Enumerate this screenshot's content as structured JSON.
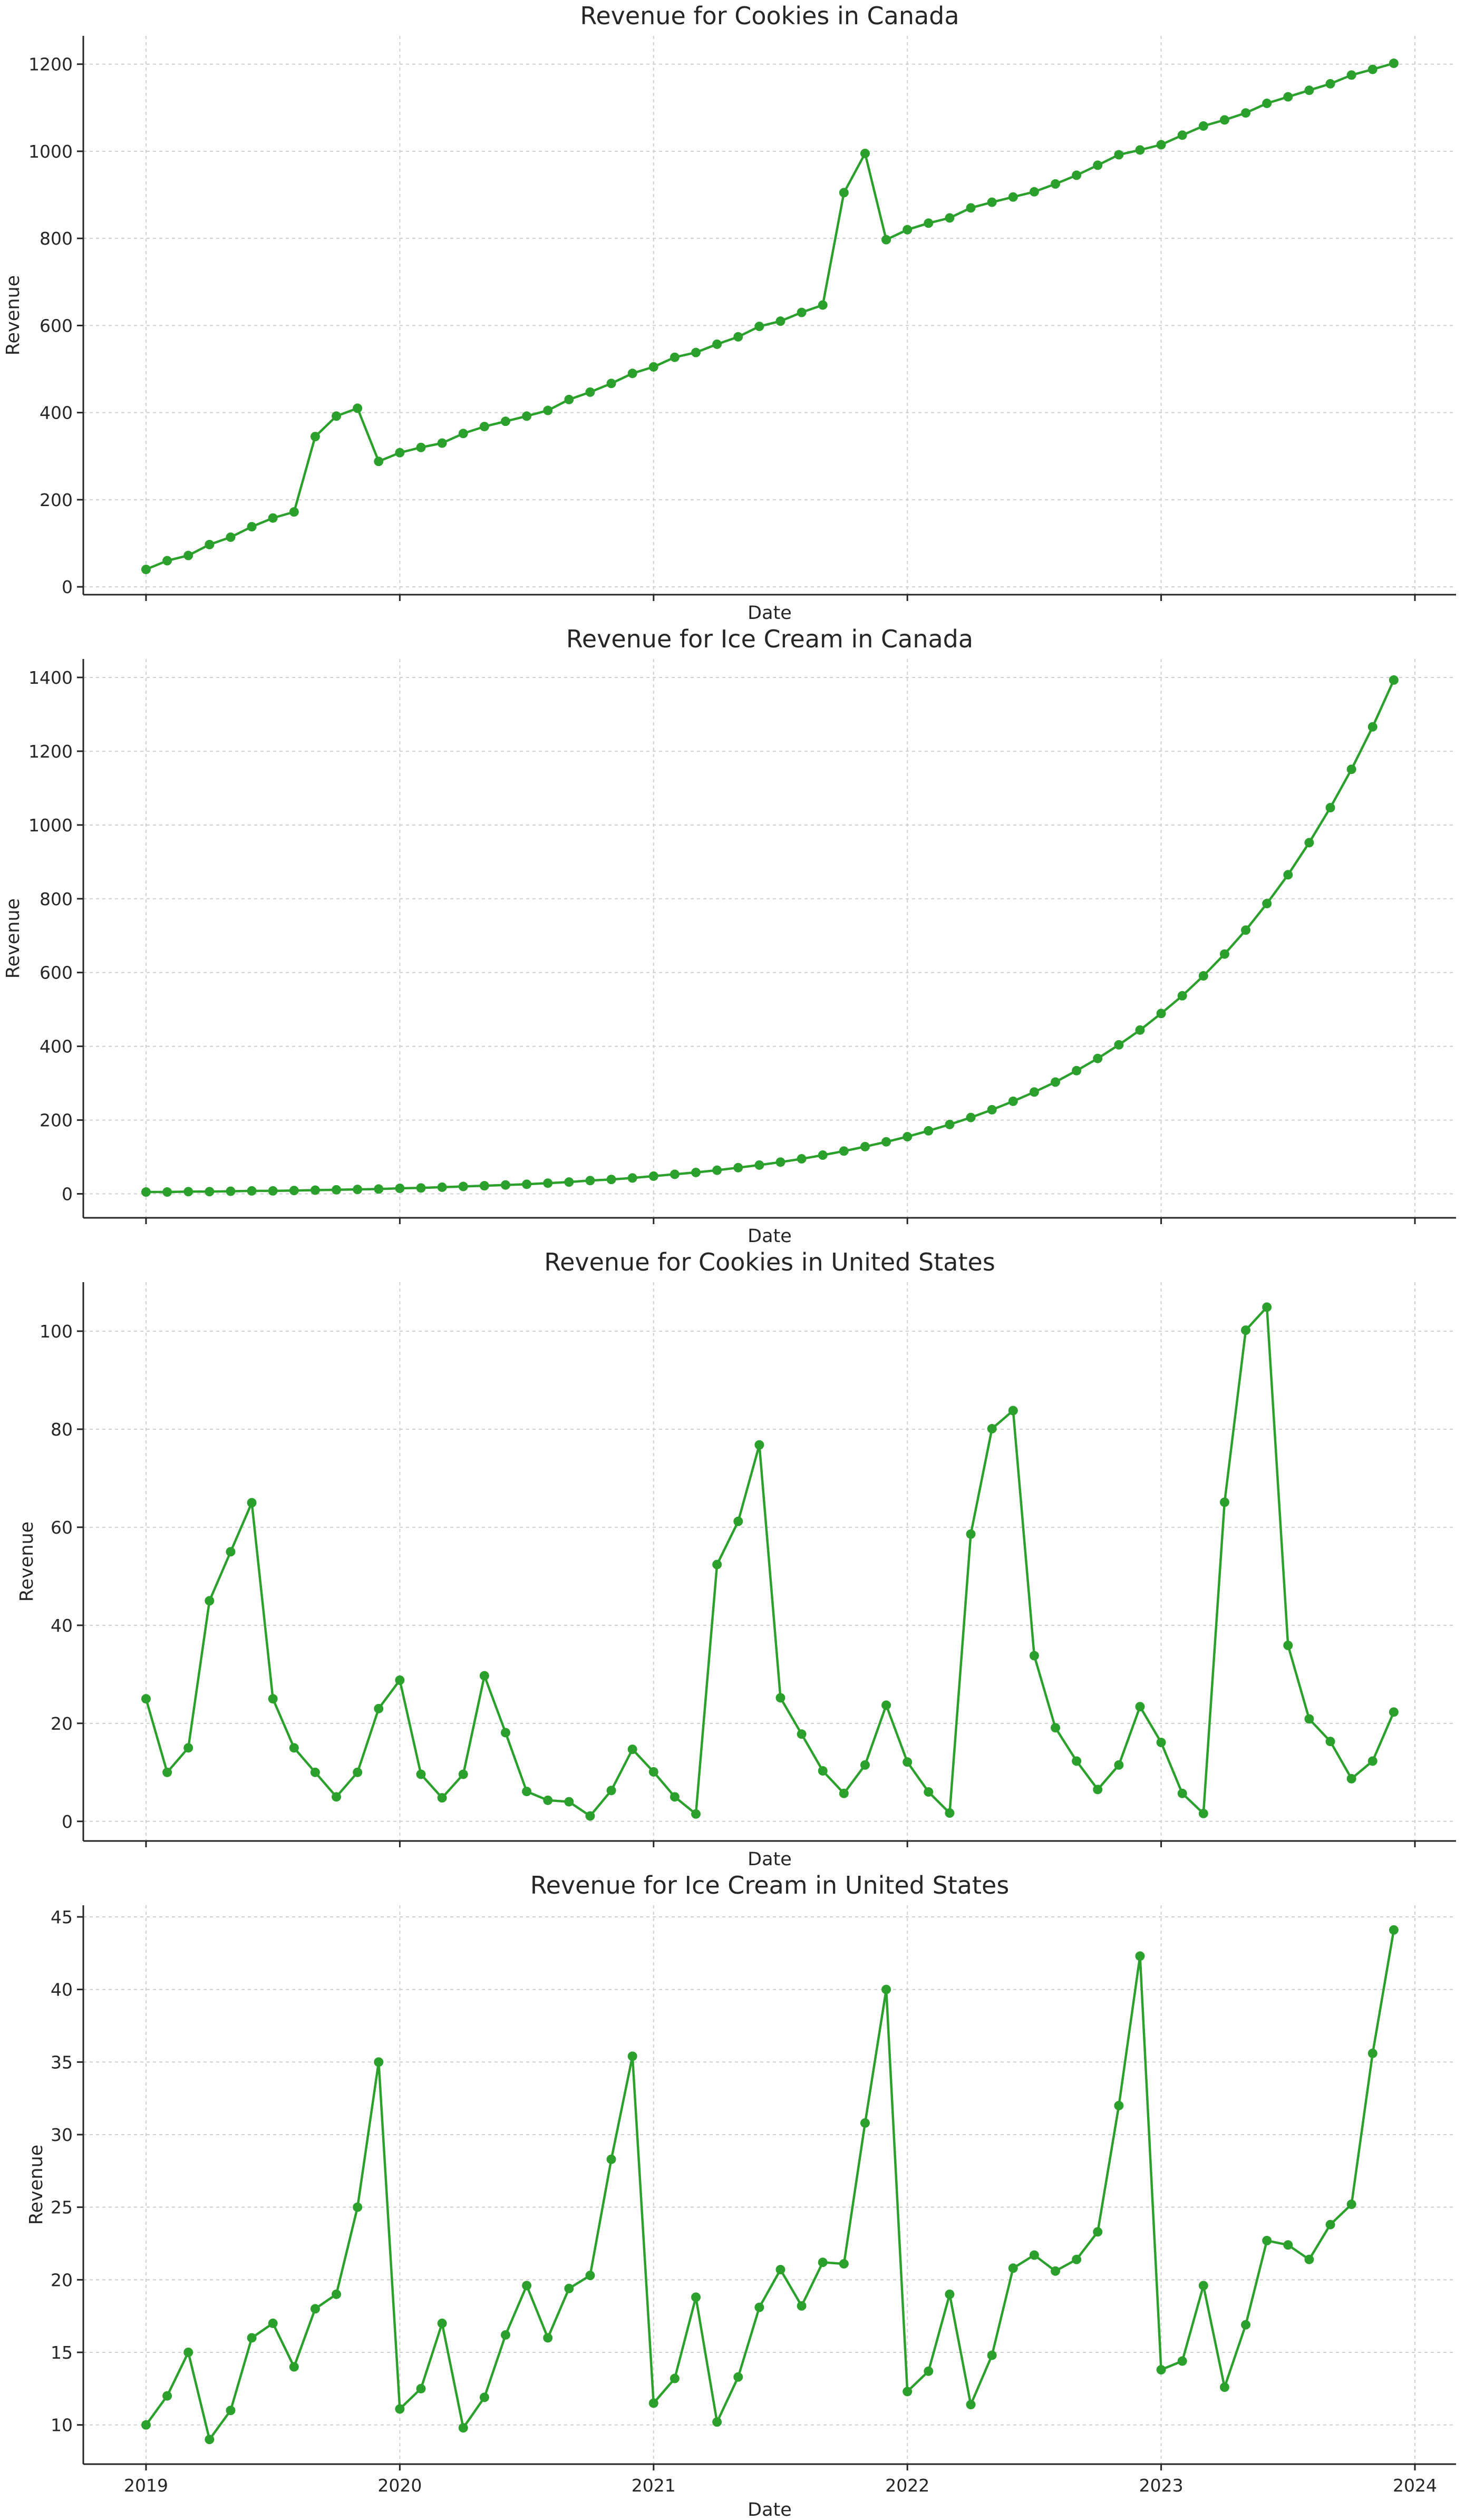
{
  "colors": {
    "series": "#2ca02c",
    "grid": "#cfcfcf",
    "axis": "#262626"
  },
  "chart_data": [
    {
      "type": "line",
      "title": "Revenue for Cookies in Canada",
      "xlabel": "Date",
      "ylabel": "Revenue",
      "x_start": "2019-01",
      "x_ticks": [
        "2019",
        "2020",
        "2021",
        "2022",
        "2023",
        "2024"
      ],
      "show_x_ticklabels": false,
      "ylim": [
        -18,
        1265
      ],
      "yticks": [
        0,
        200,
        400,
        600,
        800,
        1000,
        1200
      ],
      "grid": true,
      "values": [
        40,
        60,
        72,
        97,
        114,
        138,
        158,
        172,
        345,
        392,
        410,
        288,
        308,
        320,
        330,
        352,
        368,
        380,
        392,
        405,
        430,
        447,
        467,
        490,
        505,
        527,
        538,
        557,
        574,
        598,
        610,
        630,
        647,
        905,
        995,
        797,
        820,
        835,
        847,
        870,
        883,
        895,
        907,
        925,
        945,
        968,
        992,
        1003,
        1015,
        1037,
        1058,
        1072,
        1088,
        1110,
        1125,
        1140,
        1155,
        1175,
        1188,
        1202
      ]
    },
    {
      "type": "line",
      "title": "Revenue for Ice Cream in Canada",
      "xlabel": "Date",
      "ylabel": "Revenue",
      "x_start": "2019-01",
      "x_ticks": [
        "2019",
        "2020",
        "2021",
        "2022",
        "2023",
        "2024"
      ],
      "show_x_ticklabels": false,
      "ylim": [
        -65,
        1450
      ],
      "yticks": [
        0,
        200,
        400,
        600,
        800,
        1000,
        1200,
        1400
      ],
      "grid": true,
      "values": [
        5,
        5,
        6,
        6,
        7,
        8,
        8,
        9,
        10,
        11,
        12,
        13,
        15,
        16,
        18,
        20,
        22,
        24,
        26,
        29,
        32,
        36,
        39,
        43,
        48,
        53,
        58,
        64,
        71,
        78,
        86,
        95,
        105,
        116,
        128,
        141,
        155,
        171,
        188,
        207,
        228,
        251,
        276,
        303,
        334,
        367,
        404,
        444,
        489,
        537,
        591,
        650,
        715,
        787,
        865,
        952,
        1047,
        1151,
        1266,
        1393
      ]
    },
    {
      "type": "line",
      "title": "Revenue for Cookies in United States",
      "xlabel": "Date",
      "ylabel": "Revenue",
      "x_start": "2019-01",
      "x_ticks": [
        "2019",
        "2020",
        "2021",
        "2022",
        "2023",
        "2024"
      ],
      "show_x_ticklabels": false,
      "ylim": [
        -4,
        110
      ],
      "yticks": [
        0,
        20,
        40,
        60,
        80,
        100
      ],
      "grid": true,
      "values": [
        25,
        10,
        15,
        45,
        55,
        65,
        25,
        15,
        10,
        5,
        10,
        23,
        28.8,
        9.6,
        4.8,
        9.6,
        29.7,
        18.1,
        6.1,
        4.3,
        4.0,
        1.1,
        6.3,
        14.7,
        10.1,
        5.0,
        1.5,
        52.4,
        61.2,
        76.8,
        25.2,
        17.8,
        10.3,
        5.7,
        11.5,
        23.7,
        12.1,
        6.0,
        1.7,
        58.6,
        80.1,
        83.8,
        33.8,
        19.1,
        12.3,
        6.5,
        11.5,
        23.4,
        16.1,
        5.7,
        1.6,
        65.1,
        100.2,
        104.9,
        35.9,
        20.9,
        16.3,
        8.7,
        12.3,
        22.3
      ]
    },
    {
      "type": "line",
      "title": "Revenue for Ice Cream in United States",
      "xlabel": "Date",
      "ylabel": "Revenue",
      "x_start": "2019-01",
      "x_ticks": [
        "2019",
        "2020",
        "2021",
        "2022",
        "2023",
        "2024"
      ],
      "show_x_ticklabels": true,
      "ylim": [
        7.3,
        45.8
      ],
      "yticks": [
        10,
        15,
        20,
        25,
        30,
        35,
        40,
        45
      ],
      "grid": true,
      "values": [
        10,
        12,
        15,
        9,
        11,
        16,
        17,
        14,
        18,
        19,
        25,
        35,
        11.1,
        12.5,
        17,
        9.8,
        11.9,
        16.2,
        19.6,
        16,
        19.4,
        20.3,
        28.3,
        35.4,
        11.5,
        13.2,
        18.8,
        10.2,
        13.3,
        18.1,
        20.7,
        18.2,
        21.2,
        21.1,
        30.8,
        40,
        12.3,
        13.7,
        19,
        11.4,
        14.8,
        20.8,
        21.7,
        20.6,
        21.4,
        23.3,
        32,
        42.3,
        13.8,
        14.4,
        19.6,
        12.6,
        16.9,
        22.7,
        22.4,
        21.4,
        23.8,
        25.2,
        35.6,
        44.1
      ]
    }
  ]
}
